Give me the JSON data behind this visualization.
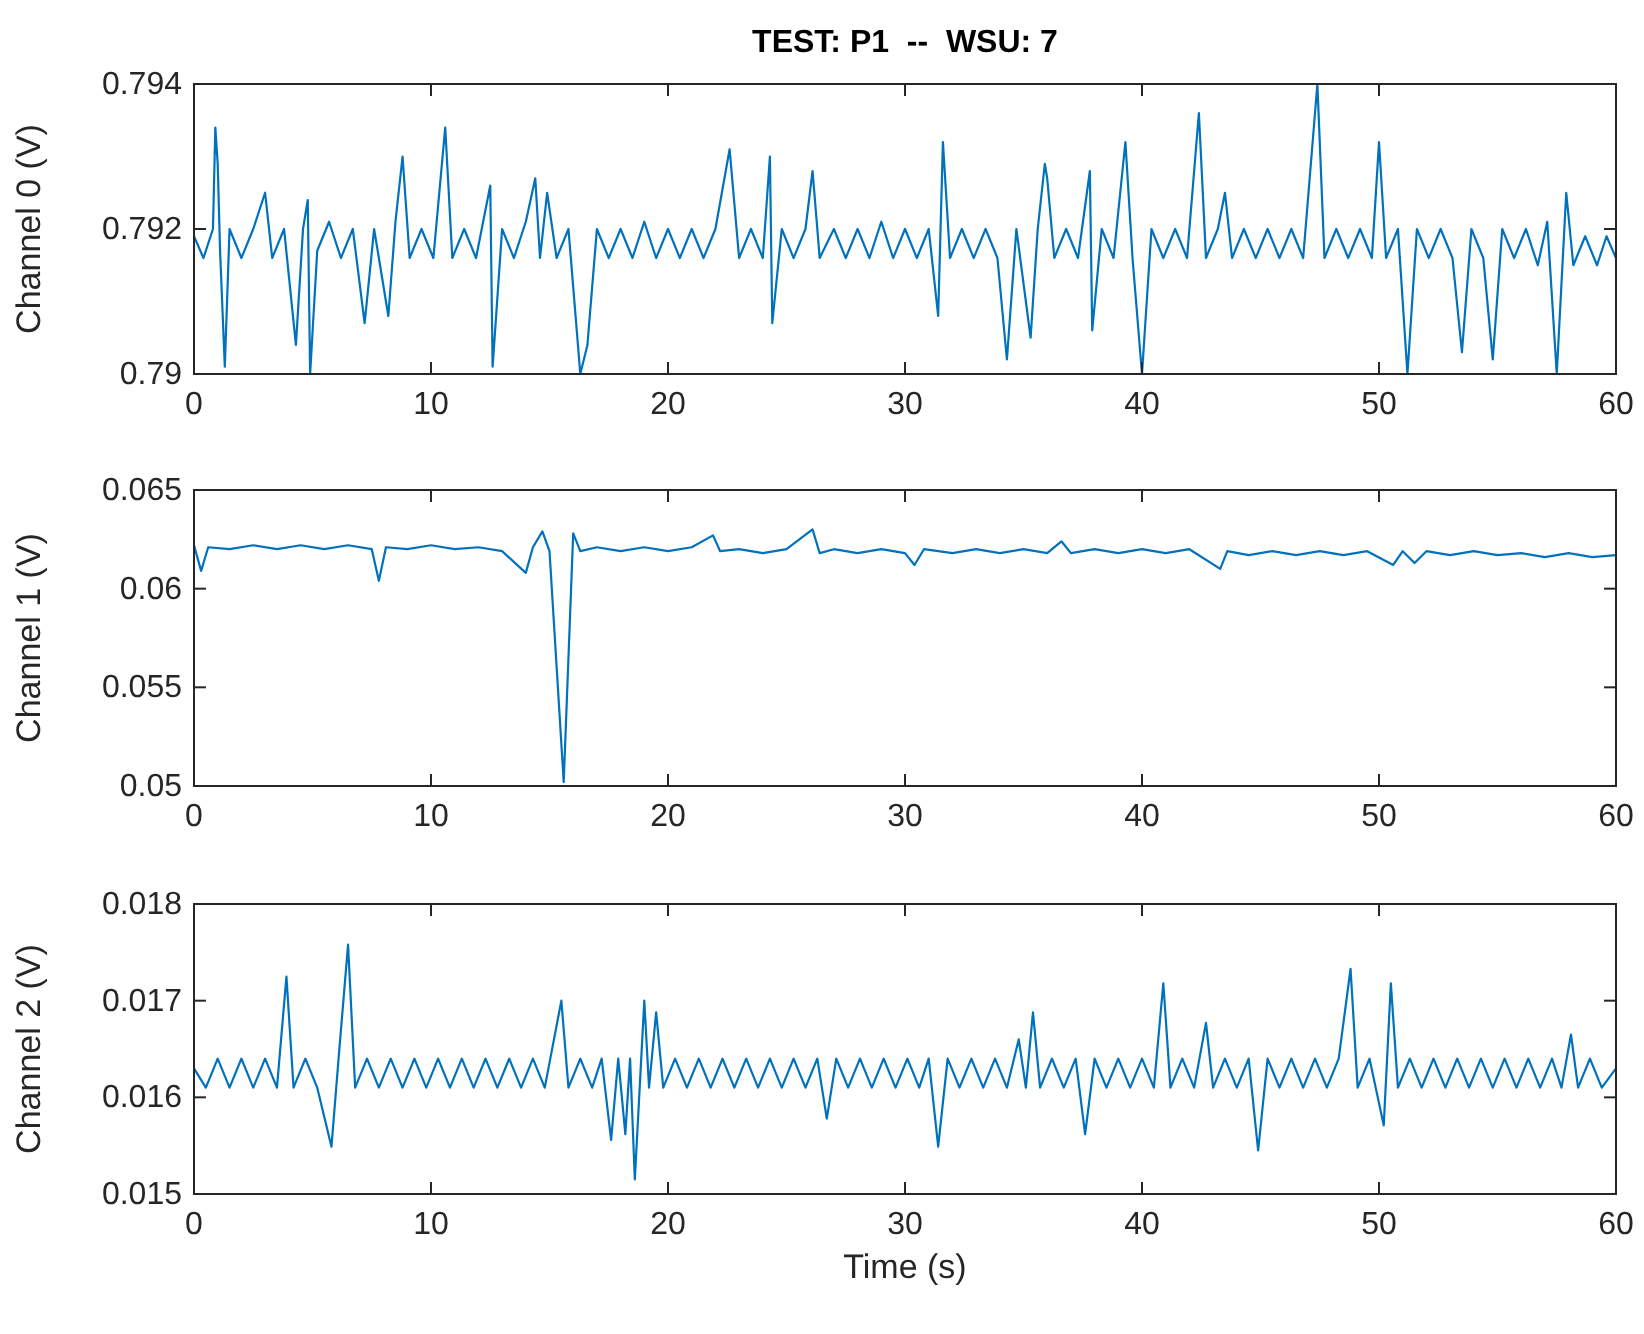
{
  "chart_data": [
    {
      "type": "line",
      "title": "TEST: P1  --  WSU: 7",
      "ylabel": "Channel 0 (V)",
      "xlim": [
        0,
        60
      ],
      "xticks": [
        0,
        10,
        20,
        30,
        40,
        50,
        60
      ],
      "ylim": [
        0.79,
        0.794
      ],
      "yticks": [
        0.79,
        0.792,
        0.794
      ],
      "series": [
        {
          "color": "#0072bd",
          "x": [
            0,
            0.4,
            0.8,
            0.9,
            1.0,
            1.1,
            1.3,
            1.5,
            2.0,
            2.5,
            3.0,
            3.3,
            3.8,
            4.3,
            4.6,
            4.8,
            4.9,
            5.2,
            5.7,
            6.2,
            6.7,
            7.2,
            7.6,
            8.2,
            8.5,
            8.8,
            9.1,
            9.6,
            10.1,
            10.6,
            10.9,
            11.4,
            11.9,
            12.5,
            12.6,
            13.0,
            13.5,
            14.0,
            14.4,
            14.6,
            14.9,
            15.3,
            15.8,
            16.3,
            16.6,
            17.0,
            17.5,
            18.0,
            18.5,
            19.0,
            19.5,
            20.0,
            20.5,
            21.0,
            21.5,
            22.0,
            22.6,
            23.0,
            23.5,
            24.0,
            24.3,
            24.4,
            24.8,
            25.3,
            25.8,
            26.1,
            26.4,
            27.0,
            27.5,
            28.0,
            28.5,
            29.0,
            29.5,
            30.0,
            30.5,
            31.0,
            31.4,
            31.6,
            31.9,
            32.4,
            32.9,
            33.4,
            33.9,
            34.3,
            34.7,
            35.3,
            35.6,
            35.9,
            36.0,
            36.3,
            36.8,
            37.3,
            37.8,
            37.9,
            38.3,
            38.8,
            39.3,
            39.6,
            40.0,
            40.4,
            40.9,
            41.4,
            41.9,
            42.4,
            42.7,
            43.2,
            43.5,
            43.8,
            44.3,
            44.8,
            45.3,
            45.8,
            46.3,
            46.8,
            47.4,
            47.7,
            48.2,
            48.7,
            49.2,
            49.7,
            50.0,
            50.3,
            50.8,
            51.2,
            51.6,
            52.1,
            52.6,
            53.1,
            53.5,
            53.9,
            54.4,
            54.8,
            55.2,
            55.7,
            56.2,
            56.7,
            57.1,
            57.5,
            57.9,
            58.2,
            58.7,
            59.2,
            59.6,
            60
          ],
          "values": [
            0.7919,
            0.7916,
            0.792,
            0.7934,
            0.7929,
            0.7917,
            0.7901,
            0.792,
            0.7916,
            0.792,
            0.7925,
            0.7916,
            0.792,
            0.7904,
            0.792,
            0.7924,
            0.79,
            0.7917,
            0.7921,
            0.7916,
            0.792,
            0.7907,
            0.792,
            0.7908,
            0.7921,
            0.793,
            0.7916,
            0.792,
            0.7916,
            0.7934,
            0.7916,
            0.792,
            0.7916,
            0.7926,
            0.7901,
            0.792,
            0.7916,
            0.7921,
            0.7927,
            0.7916,
            0.7925,
            0.7916,
            0.792,
            0.79,
            0.7904,
            0.792,
            0.7916,
            0.792,
            0.7916,
            0.7921,
            0.7916,
            0.792,
            0.7916,
            0.792,
            0.7916,
            0.792,
            0.7931,
            0.7916,
            0.792,
            0.7916,
            0.793,
            0.7907,
            0.792,
            0.7916,
            0.792,
            0.7928,
            0.7916,
            0.792,
            0.7916,
            0.792,
            0.7916,
            0.7921,
            0.7916,
            0.792,
            0.7916,
            0.792,
            0.7908,
            0.7932,
            0.7916,
            0.792,
            0.7916,
            0.792,
            0.7916,
            0.7902,
            0.792,
            0.7905,
            0.792,
            0.7929,
            0.7927,
            0.7916,
            0.792,
            0.7916,
            0.7928,
            0.7906,
            0.792,
            0.7916,
            0.7932,
            0.7916,
            0.79,
            0.792,
            0.7916,
            0.792,
            0.7916,
            0.7936,
            0.7916,
            0.792,
            0.7925,
            0.7916,
            0.792,
            0.7916,
            0.792,
            0.7916,
            0.792,
            0.7916,
            0.794,
            0.7916,
            0.792,
            0.7916,
            0.792,
            0.7916,
            0.7932,
            0.7916,
            0.792,
            0.79,
            0.792,
            0.7916,
            0.792,
            0.7916,
            0.7903,
            0.792,
            0.7916,
            0.7902,
            0.792,
            0.7916,
            0.792,
            0.7915,
            0.7921,
            0.79,
            0.7925,
            0.7915,
            0.7919,
            0.7915,
            0.7919,
            0.7916
          ]
        }
      ]
    },
    {
      "type": "line",
      "ylabel": "Channel 1 (V)",
      "xlim": [
        0,
        60
      ],
      "xticks": [
        0,
        10,
        20,
        30,
        40,
        50,
        60
      ],
      "ylim": [
        0.05,
        0.065
      ],
      "yticks": [
        0.05,
        0.055,
        0.06,
        0.065
      ],
      "series": [
        {
          "color": "#0072bd",
          "x": [
            0,
            0.3,
            0.6,
            1.5,
            2.5,
            3.5,
            4.5,
            5.5,
            6.5,
            7.5,
            7.8,
            8.1,
            9,
            10,
            11,
            12,
            13,
            14.0,
            14.3,
            14.7,
            15.0,
            15.6,
            16.0,
            16.3,
            17,
            18,
            19,
            20,
            21,
            21.9,
            22.2,
            23,
            24,
            25,
            26.1,
            26.4,
            27,
            28,
            29,
            30,
            30.4,
            30.8,
            32,
            33,
            34,
            35,
            36,
            36.6,
            37,
            38,
            39,
            40,
            41,
            42,
            43.3,
            43.6,
            44.5,
            45.5,
            46.5,
            47.5,
            48.5,
            49.5,
            50.6,
            51.0,
            51.5,
            52,
            53,
            54,
            55,
            56,
            57,
            58,
            59,
            60
          ],
          "values": [
            0.0622,
            0.0609,
            0.0621,
            0.062,
            0.0622,
            0.062,
            0.0622,
            0.062,
            0.0622,
            0.062,
            0.0604,
            0.0621,
            0.062,
            0.0622,
            0.062,
            0.0621,
            0.0619,
            0.0608,
            0.0621,
            0.0629,
            0.0619,
            0.0502,
            0.0628,
            0.0619,
            0.0621,
            0.0619,
            0.0621,
            0.0619,
            0.0621,
            0.0627,
            0.0619,
            0.062,
            0.0618,
            0.062,
            0.063,
            0.0618,
            0.062,
            0.0618,
            0.062,
            0.0618,
            0.0612,
            0.062,
            0.0618,
            0.062,
            0.0618,
            0.062,
            0.0618,
            0.0624,
            0.0618,
            0.062,
            0.0618,
            0.062,
            0.0618,
            0.062,
            0.061,
            0.0619,
            0.0617,
            0.0619,
            0.0617,
            0.0619,
            0.0617,
            0.0619,
            0.0612,
            0.0619,
            0.0613,
            0.0619,
            0.0617,
            0.0619,
            0.0617,
            0.0618,
            0.0616,
            0.0618,
            0.0616,
            0.0617
          ]
        }
      ]
    },
    {
      "type": "line",
      "ylabel": "Channel 2 (V)",
      "xlabel": "Time (s)",
      "xlim": [
        0,
        60
      ],
      "xticks": [
        0,
        10,
        20,
        30,
        40,
        50,
        60
      ],
      "ylim": [
        0.015,
        0.018
      ],
      "yticks": [
        0.015,
        0.016,
        0.017,
        0.018
      ],
      "series": [
        {
          "color": "#0072bd",
          "x": [
            0,
            0.5,
            1.0,
            1.5,
            2.0,
            2.5,
            3.0,
            3.5,
            3.9,
            4.2,
            4.7,
            5.2,
            5.8,
            6.1,
            6.5,
            6.8,
            7.3,
            7.8,
            8.3,
            8.8,
            9.3,
            9.8,
            10.3,
            10.8,
            11.3,
            11.8,
            12.3,
            12.8,
            13.3,
            13.8,
            14.3,
            14.8,
            15.5,
            15.8,
            16.3,
            16.8,
            17.2,
            17.6,
            17.9,
            18.2,
            18.4,
            18.6,
            19.0,
            19.2,
            19.5,
            19.8,
            20.3,
            20.8,
            21.3,
            21.8,
            22.3,
            22.8,
            23.3,
            23.8,
            24.3,
            24.8,
            25.3,
            25.8,
            26.3,
            26.7,
            27.1,
            27.6,
            28.1,
            28.6,
            29.1,
            29.6,
            30.1,
            30.6,
            31.0,
            31.4,
            31.8,
            32.3,
            32.8,
            33.3,
            33.8,
            34.3,
            34.8,
            35.1,
            35.4,
            35.7,
            36.2,
            36.7,
            37.2,
            37.6,
            38.0,
            38.5,
            39.0,
            39.5,
            40.0,
            40.5,
            40.9,
            41.2,
            41.7,
            42.2,
            42.7,
            43.0,
            43.5,
            44.0,
            44.5,
            44.9,
            45.3,
            45.8,
            46.3,
            46.8,
            47.3,
            47.8,
            48.3,
            48.8,
            49.1,
            49.6,
            50.2,
            50.5,
            50.8,
            51.3,
            51.8,
            52.3,
            52.8,
            53.3,
            53.8,
            54.3,
            54.8,
            55.3,
            55.8,
            56.3,
            56.8,
            57.3,
            57.7,
            58.1,
            58.4,
            58.9,
            59.4,
            60
          ],
          "values": [
            0.0163,
            0.0161,
            0.0164,
            0.0161,
            0.0164,
            0.0161,
            0.0164,
            0.0161,
            0.01725,
            0.0161,
            0.0164,
            0.0161,
            0.01549,
            0.0164,
            0.01758,
            0.0161,
            0.0164,
            0.0161,
            0.0164,
            0.0161,
            0.0164,
            0.0161,
            0.0164,
            0.0161,
            0.0164,
            0.0161,
            0.0164,
            0.0161,
            0.0164,
            0.0161,
            0.0164,
            0.0161,
            0.017,
            0.0161,
            0.0164,
            0.0161,
            0.0164,
            0.01556,
            0.0164,
            0.01562,
            0.0164,
            0.01515,
            0.017,
            0.0161,
            0.01688,
            0.0161,
            0.0164,
            0.0161,
            0.0164,
            0.0161,
            0.0164,
            0.0161,
            0.0164,
            0.0161,
            0.0164,
            0.0161,
            0.0164,
            0.0161,
            0.0164,
            0.01578,
            0.0164,
            0.0161,
            0.0164,
            0.0161,
            0.0164,
            0.0161,
            0.0164,
            0.0161,
            0.0164,
            0.01549,
            0.0164,
            0.0161,
            0.0164,
            0.0161,
            0.0164,
            0.0161,
            0.0166,
            0.0161,
            0.01688,
            0.0161,
            0.0164,
            0.0161,
            0.0164,
            0.01562,
            0.0164,
            0.0161,
            0.0164,
            0.0161,
            0.0164,
            0.0161,
            0.01718,
            0.0161,
            0.0164,
            0.0161,
            0.01677,
            0.0161,
            0.0164,
            0.0161,
            0.0164,
            0.01545,
            0.0164,
            0.0161,
            0.0164,
            0.0161,
            0.0164,
            0.0161,
            0.0164,
            0.01733,
            0.0161,
            0.0164,
            0.01571,
            0.01718,
            0.0161,
            0.0164,
            0.0161,
            0.0164,
            0.0161,
            0.0164,
            0.0161,
            0.0164,
            0.0161,
            0.0164,
            0.0161,
            0.0164,
            0.0161,
            0.0164,
            0.0161,
            0.01665,
            0.0161,
            0.0164,
            0.0161,
            0.0163
          ]
        }
      ]
    }
  ]
}
